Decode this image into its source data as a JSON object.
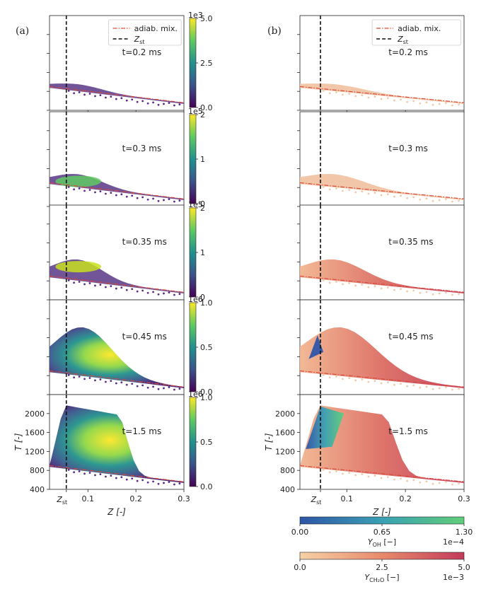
{
  "figure": {
    "panel_labels": [
      "(a)",
      "(b)"
    ],
    "legend": {
      "adiabatic": "adiab. mix.",
      "stoich": "Z",
      "stoich_sub": "st"
    }
  },
  "chart_data": [
    {
      "type": "scatter",
      "panel": "(a)",
      "xlabel": "Z [-]",
      "ylabel": "T [-]",
      "x_ticks": [
        "0.1",
        "0.2",
        "0.3"
      ],
      "x_tick_values": [
        0.1,
        0.2,
        0.3
      ],
      "x_special_tick": {
        "label": "Z",
        "sub": "st",
        "value": 0.055
      },
      "xlim": [
        0.02,
        0.3
      ],
      "ylim": [
        400,
        2400
      ],
      "y_ticks": [
        400,
        800,
        1200,
        1600,
        2000
      ],
      "stoichiometric_Z": 0.055,
      "adiabatic_mixing": {
        "x": [
          0.02,
          0.3
        ],
        "y": [
          900,
          560
        ],
        "style": "dash-dot",
        "color": "#d9473a"
      },
      "subplots": [
        {
          "time_label": "t=0.2 ms",
          "colorbar": {
            "ticks": [
              "0.0",
              "2.5",
              "5.0"
            ],
            "exponent": "1e3",
            "range": [
              0,
              5000
            ],
            "colormap": "viridis"
          },
          "max_T": 950
        },
        {
          "time_label": "t=0.3 ms",
          "colorbar": {
            "ticks": [
              "0",
              "1",
              "2"
            ],
            "exponent": "1e5",
            "range": [
              0,
              200000
            ],
            "colormap": "viridis"
          },
          "max_T": 1080
        },
        {
          "time_label": "t=0.35 ms",
          "colorbar": {
            "ticks": [
              "0",
              "1",
              "2"
            ],
            "exponent": "1e5",
            "range": [
              0,
              200000
            ],
            "colormap": "viridis"
          },
          "max_T": 1250
        },
        {
          "time_label": "t=0.45 ms",
          "colorbar": {
            "ticks": [
              "0.0",
              "0.5",
              "1.0"
            ],
            "exponent": "1e6",
            "range": [
              0,
              1000000
            ],
            "colormap": "viridis"
          },
          "max_T": 1820
        },
        {
          "time_label": "t=1.5 ms",
          "colorbar": {
            "ticks": [
              "0.0",
              "0.5",
              "1.0"
            ],
            "exponent": "1e6",
            "range": [
              0,
              1000000
            ],
            "colormap": "viridis"
          },
          "max_T": 2180
        }
      ]
    },
    {
      "type": "scatter",
      "panel": "(b)",
      "xlabel": "Z [-]",
      "ylabel": "T [-]",
      "x_ticks": [
        "0.1",
        "0.2",
        "0.3"
      ],
      "x_tick_values": [
        0.1,
        0.2,
        0.3
      ],
      "x_special_tick": {
        "label": "Z",
        "sub": "st",
        "value": 0.055
      },
      "xlim": [
        0.02,
        0.3
      ],
      "ylim": [
        400,
        2400
      ],
      "y_ticks": [
        400,
        800,
        1200,
        1600,
        2000
      ],
      "stoichiometric_Z": 0.055,
      "subplots": [
        {
          "time_label": "t=0.2 ms"
        },
        {
          "time_label": "t=0.3 ms"
        },
        {
          "time_label": "t=0.35 ms"
        },
        {
          "time_label": "t=0.45 ms"
        },
        {
          "time_label": "t=1.5 ms"
        }
      ],
      "colorbars": [
        {
          "ticks": [
            "0.00",
            "0.65",
            "1.30"
          ],
          "label": "Y",
          "label_sub": "OH",
          "label_unit": " [−]",
          "exponent": "1e−4",
          "range": [
            0,
            0.00013
          ],
          "colormap": "blue-green"
        },
        {
          "ticks": [
            "0.0",
            "2.5",
            "5.0"
          ],
          "label": "Y",
          "label_sub": "CH₂O",
          "label_unit": " [−]",
          "exponent": "1e−3",
          "range": [
            0,
            0.005
          ],
          "colormap": "peach-crimson"
        }
      ]
    }
  ],
  "colors": {
    "viridis": [
      "#440154",
      "#3b528b",
      "#21918c",
      "#5ec962",
      "#fde725"
    ],
    "oh_map": [
      "#2e55a8",
      "#3aa0b4",
      "#5fcf7a"
    ],
    "ch2o_map": [
      "#f7d1a6",
      "#e88a6c",
      "#c23b5a"
    ],
    "adiabatic": "#d9473a"
  }
}
